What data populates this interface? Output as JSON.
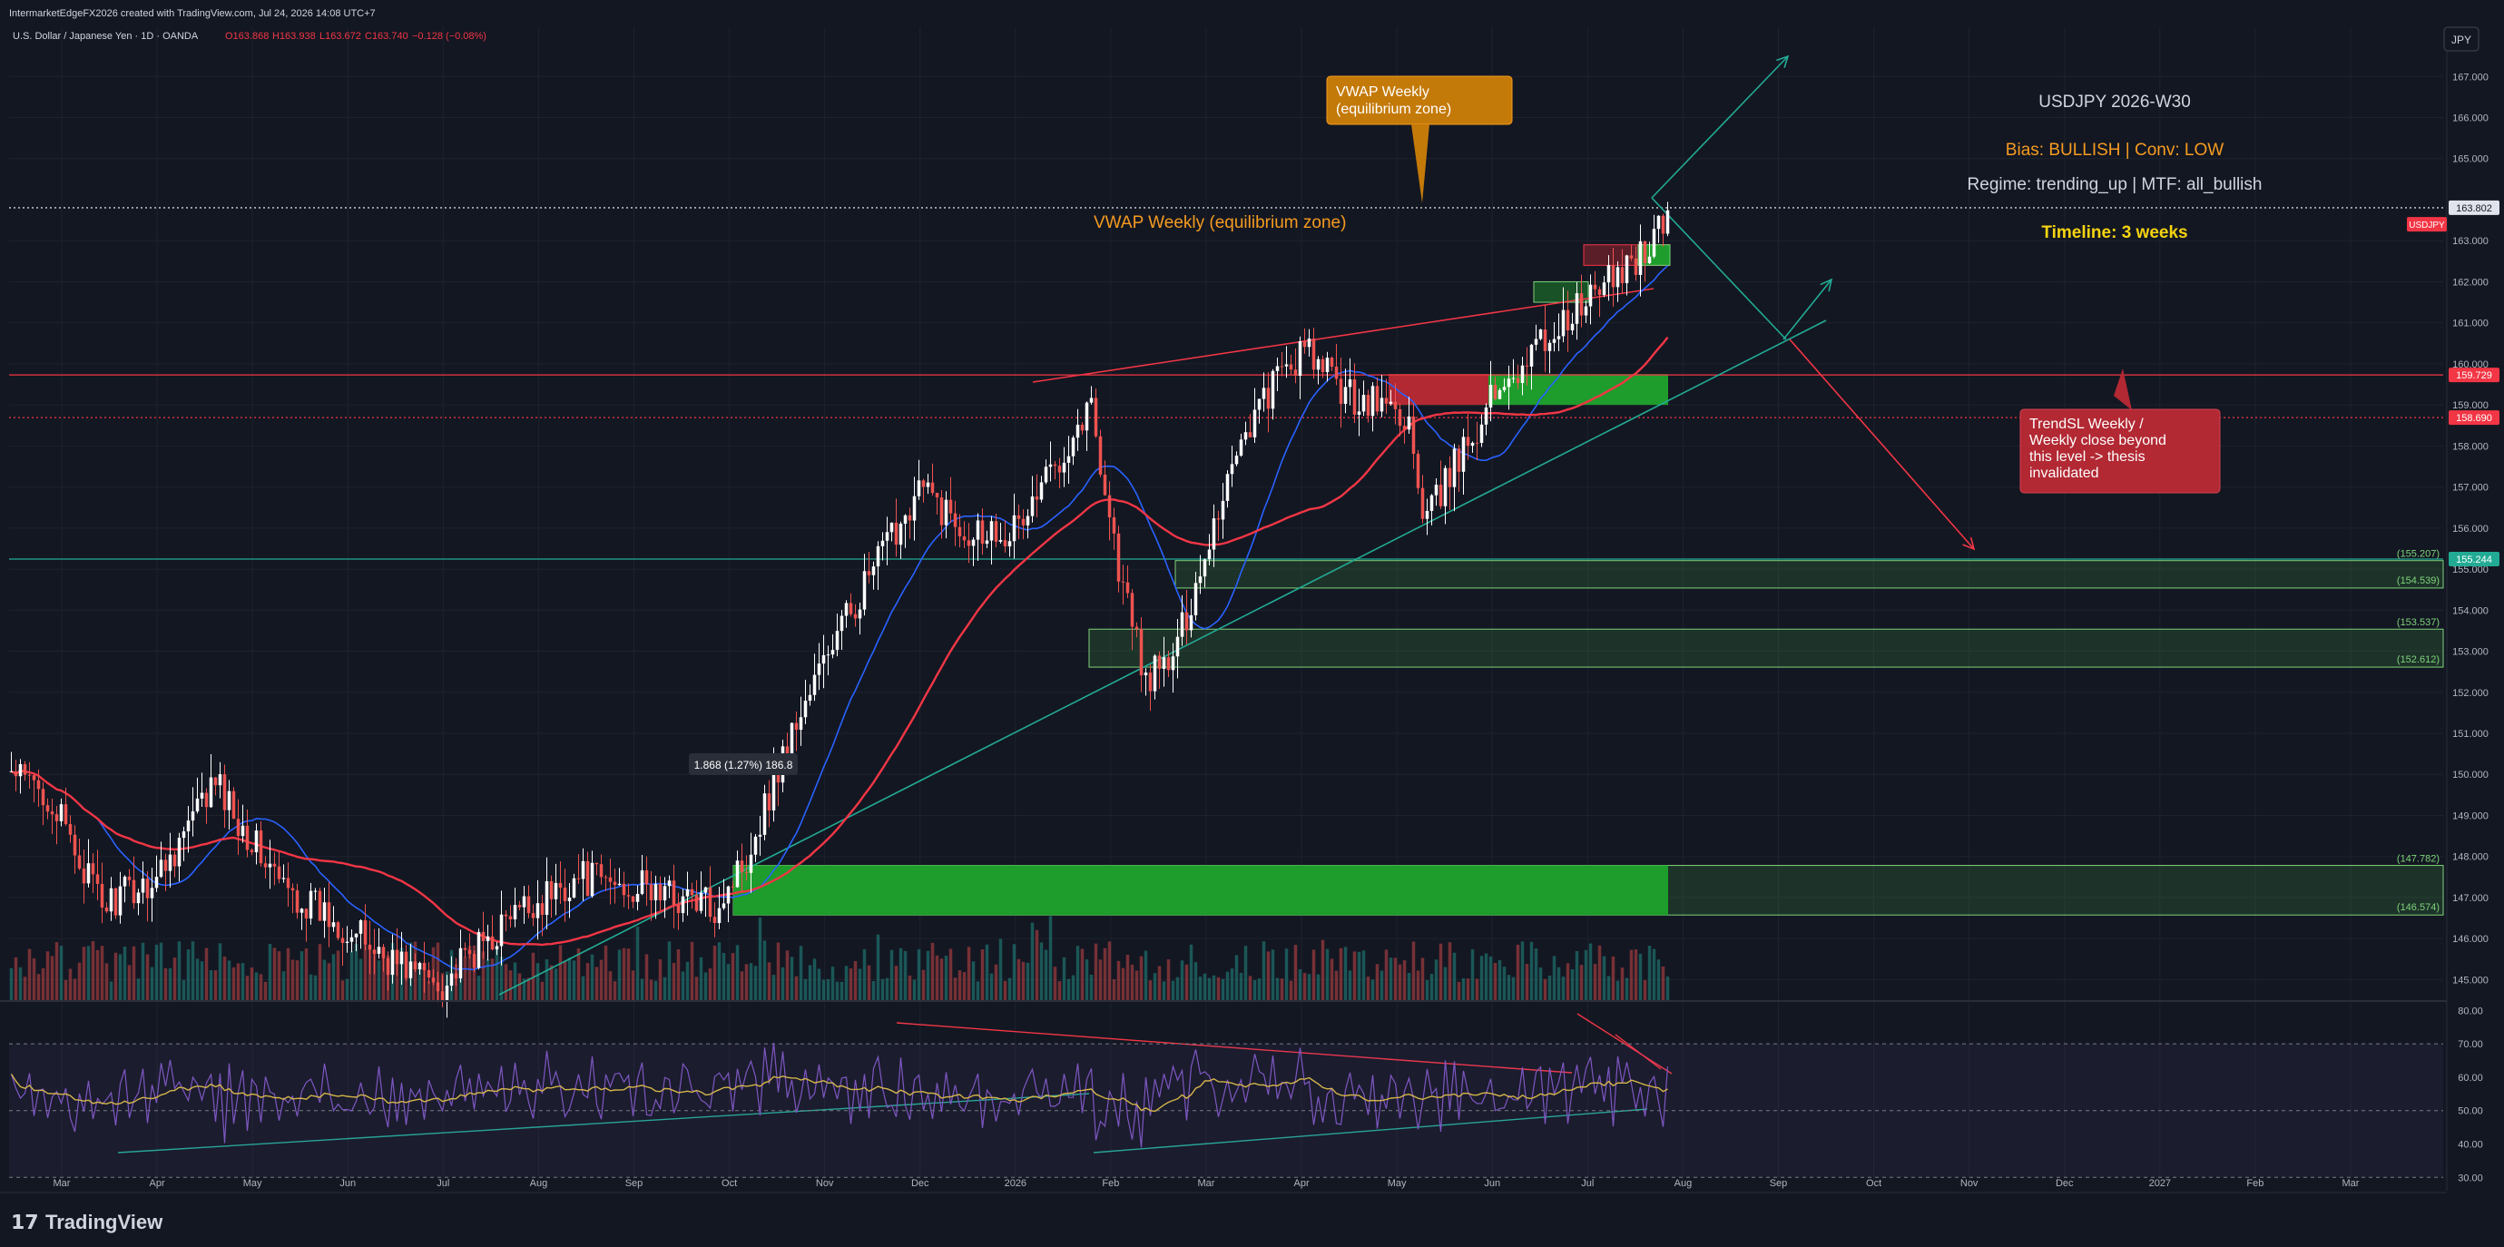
{
  "header": {
    "created_by": "IntermarketEdgeFX2026 created with TradingView.com, Jul 24, 2026 14:08 UTC+7",
    "symbol_desc": "U.S. Dollar / Japanese Yen · 1D · OANDA",
    "ohlc": {
      "o": "O163.868",
      "h": "H163.938",
      "l": "L163.672",
      "c": "C163.740",
      "chg": "−0.128 (−0.08%)"
    }
  },
  "currency_button": "JPY",
  "footer": {
    "brand": "TradingView"
  },
  "panel": {
    "title": "USDJPY 2026-W30",
    "bias": "Bias: BULLISH | Conv: LOW",
    "regime": "Regime: trending_up | MTF: all_bullish",
    "timeline": "Timeline: 3 weeks"
  },
  "callouts": {
    "vwap_box": "VWAP Weekly\n(equilibrium zone)",
    "vwap_label": "VWAP Weekly (equilibrium zone)",
    "trendsl_box": "TrendSL Weekly /\nWeekly close beyond\nthis level -> thesis\ninvalidated",
    "measure": "1.868 (1.27%) 186.8"
  },
  "colors": {
    "bg": "#131722",
    "up": "#26a69a",
    "down": "#ef5350",
    "ma_fast": "#2962ff",
    "ma_slow": "#f23645",
    "trend": "#22ab94",
    "zone": "#1e8f2e",
    "rsi": "#7e57c2",
    "rsi_ma": "#d4b54a",
    "orange": "#f59b21",
    "yellow": "#f5d312",
    "red": "#f23645"
  },
  "chart_data": {
    "type": "candlestick",
    "symbol": "USDJPY",
    "timeframe": "1D",
    "price_axis": {
      "ticks": [
        145,
        146,
        147,
        148,
        149,
        150,
        151,
        152,
        153,
        154,
        155,
        156,
        157,
        158,
        159,
        160,
        161,
        162,
        163,
        165,
        166,
        167
      ],
      "range": [
        144.5,
        168.2
      ]
    },
    "x_axis": {
      "labels": [
        "Mar",
        "Apr",
        "May",
        "Jun",
        "Jul",
        "Aug",
        "Sep",
        "Oct",
        "Nov",
        "Dec",
        "2026",
        "Feb",
        "Mar",
        "Apr",
        "May",
        "Jun",
        "Jul",
        "Aug",
        "Sep",
        "Oct",
        "Nov",
        "Dec",
        "2027",
        "Feb",
        "Mar"
      ]
    },
    "price_anchors": [
      {
        "t": 0,
        "p": 150.0
      },
      {
        "t": 8,
        "p": 149.5
      },
      {
        "t": 20,
        "p": 146.8
      },
      {
        "t": 32,
        "p": 147.5
      },
      {
        "t": 45,
        "p": 149.8
      },
      {
        "t": 60,
        "p": 147.2
      },
      {
        "t": 72,
        "p": 146.4
      },
      {
        "t": 82,
        "p": 145.6
      },
      {
        "t": 95,
        "p": 144.9
      },
      {
        "t": 110,
        "p": 146.5
      },
      {
        "t": 125,
        "p": 147.5
      },
      {
        "t": 140,
        "p": 147.2
      },
      {
        "t": 155,
        "p": 146.8
      },
      {
        "t": 162,
        "p": 148.0
      },
      {
        "t": 170,
        "p": 150.5
      },
      {
        "t": 180,
        "p": 153.0
      },
      {
        "t": 190,
        "p": 155.0
      },
      {
        "t": 200,
        "p": 157.0
      },
      {
        "t": 210,
        "p": 156.0
      },
      {
        "t": 222,
        "p": 156.0
      },
      {
        "t": 232,
        "p": 158.0
      },
      {
        "t": 238,
        "p": 159.0
      },
      {
        "t": 244,
        "p": 155.0
      },
      {
        "t": 250,
        "p": 152.3
      },
      {
        "t": 256,
        "p": 152.8
      },
      {
        "t": 262,
        "p": 155.0
      },
      {
        "t": 270,
        "p": 158.0
      },
      {
        "t": 278,
        "p": 159.5
      },
      {
        "t": 285,
        "p": 160.3
      },
      {
        "t": 295,
        "p": 159.2
      },
      {
        "t": 303,
        "p": 159.0
      },
      {
        "t": 308,
        "p": 158.6
      },
      {
        "t": 311,
        "p": 156.0
      },
      {
        "t": 318,
        "p": 157.5
      },
      {
        "t": 328,
        "p": 159.5
      },
      {
        "t": 340,
        "p": 160.8
      },
      {
        "t": 352,
        "p": 162.0
      },
      {
        "t": 362,
        "p": 163.0
      },
      {
        "t": 365,
        "p": 163.8
      }
    ],
    "indicators": {
      "ma_fast": {
        "color": "#2962ff",
        "period": 20
      },
      "ma_slow": {
        "color": "#f23645",
        "period": 50
      }
    },
    "levels": [
      {
        "label": "USDJPY",
        "price": 163.802,
        "style": "dotted",
        "color": "#ffffff"
      },
      {
        "label": "159.729",
        "price": 159.729,
        "style": "solid",
        "color": "#f23645"
      },
      {
        "label": "158.690",
        "price": 158.69,
        "style": "dotted",
        "color": "#f23645"
      },
      {
        "label": "155.244",
        "price": 155.244,
        "style": "solid",
        "color": "#22ab94"
      }
    ],
    "zones": [
      {
        "label_top": "(155.207)",
        "label_bottom": "(154.539)",
        "top": 155.207,
        "bottom": 154.539
      },
      {
        "label_top": "(153.537)",
        "label_bottom": "(152.612)",
        "top": 153.537,
        "bottom": 152.612
      },
      {
        "label_top": "(147.782)",
        "label_bottom": "(146.574)",
        "top": 147.782,
        "bottom": 146.574
      }
    ],
    "rsi": {
      "axis_ticks": [
        30,
        40,
        50,
        60,
        70,
        80
      ],
      "range": [
        26,
        82
      ],
      "overbought": 70,
      "oversold": 30
    }
  }
}
